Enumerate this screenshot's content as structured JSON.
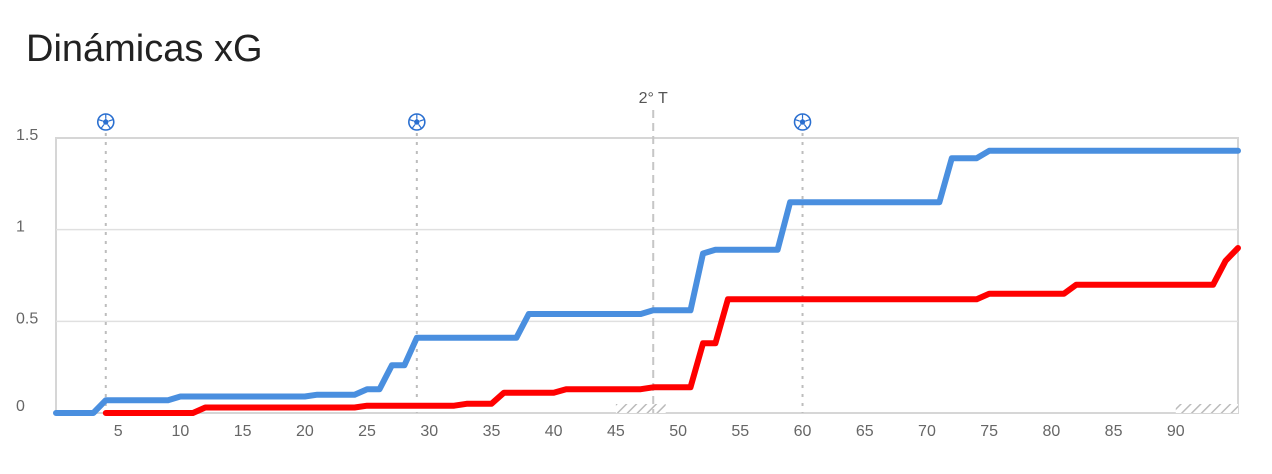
{
  "chart_data": {
    "type": "line",
    "title": "Dinámicas xG",
    "xlabel": "",
    "ylabel": "",
    "xlim": [
      0,
      95
    ],
    "ylim": [
      0,
      1.5
    ],
    "x_ticks": [
      5,
      10,
      15,
      20,
      25,
      30,
      35,
      40,
      45,
      50,
      55,
      60,
      65,
      70,
      75,
      80,
      85,
      90
    ],
    "y_ticks": [
      {
        "value": 0,
        "label": "0"
      },
      {
        "value": 0.5,
        "label": "0.5"
      },
      {
        "value": 1,
        "label": "1"
      },
      {
        "value": 1.5,
        "label": "1.5"
      }
    ],
    "grid": true,
    "half_time_label": "2° T",
    "goals": [
      {
        "minute": 4,
        "icon": "soccer-ball-icon"
      },
      {
        "minute": 29,
        "icon": "soccer-ball-icon"
      },
      {
        "minute": 60,
        "icon": "soccer-ball-icon"
      }
    ],
    "series": [
      {
        "color": "#4a8fdf",
        "x": [
          0,
          3,
          4,
          9,
          10,
          20,
          21,
          24,
          25,
          26,
          27,
          28,
          29,
          37,
          38,
          47,
          48,
          51,
          52,
          53,
          58,
          59,
          71,
          72,
          74,
          75,
          95
        ],
        "y": [
          0,
          0,
          0.07,
          0.07,
          0.09,
          0.09,
          0.1,
          0.1,
          0.13,
          0.13,
          0.26,
          0.26,
          0.41,
          0.41,
          0.54,
          0.54,
          0.56,
          0.56,
          0.87,
          0.89,
          0.89,
          1.15,
          1.15,
          1.39,
          1.39,
          1.43,
          1.43
        ]
      },
      {
        "color": "#ff0000",
        "x": [
          4,
          11,
          12,
          24,
          25,
          32,
          33,
          35,
          36,
          40,
          41,
          47,
          48,
          51,
          52,
          53,
          54,
          74,
          75,
          81,
          82,
          93,
          94,
          95
        ],
        "y": [
          0,
          0,
          0.03,
          0.03,
          0.04,
          0.04,
          0.05,
          0.05,
          0.11,
          0.11,
          0.13,
          0.13,
          0.14,
          0.14,
          0.38,
          0.38,
          0.62,
          0.62,
          0.65,
          0.65,
          0.7,
          0.7,
          0.83,
          0.9
        ]
      }
    ]
  }
}
